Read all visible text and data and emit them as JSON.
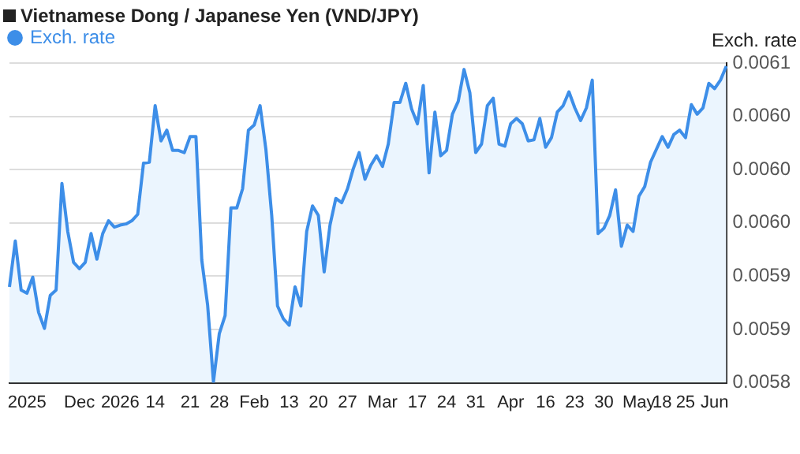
{
  "chart_data": {
    "type": "area",
    "title": "Vietnamese Dong / Japanese Yen (VND/JPY)",
    "ylabel": "Exch. rate",
    "categories": [
      null,
      null,
      null,
      "2025",
      null,
      null,
      null,
      null,
      null,
      null,
      null,
      null,
      "Dec",
      null,
      null,
      null,
      null,
      null,
      null,
      "2026",
      null,
      null,
      null,
      null,
      null,
      "14",
      null,
      null,
      null,
      null,
      null,
      "21",
      null,
      null,
      null,
      null,
      "28",
      null,
      null,
      null,
      null,
      null,
      "Feb",
      null,
      null,
      null,
      null,
      null,
      "13",
      null,
      null,
      null,
      null,
      "20",
      null,
      null,
      null,
      null,
      "27",
      null,
      null,
      null,
      null,
      null,
      "Mar",
      null,
      null,
      null,
      null,
      null,
      "17",
      null,
      null,
      null,
      null,
      "24",
      null,
      null,
      null,
      null,
      "31",
      null,
      null,
      null,
      null,
      null,
      "Apr",
      null,
      null,
      null,
      null,
      null,
      "16",
      null,
      null,
      null,
      null,
      "23",
      null,
      null,
      null,
      null,
      "30",
      null,
      null,
      null,
      null,
      null,
      "May",
      null,
      null,
      null,
      "18",
      null,
      null,
      null,
      "25",
      null,
      null,
      null,
      null,
      "Jun",
      null,
      null
    ],
    "series": [
      {
        "name": "Exch. rate",
        "color": "#3d8ee8",
        "values": [
          0.00589,
          0.005933,
          0.005887,
          0.005884,
          0.005899,
          0.005866,
          0.005851,
          0.005882,
          0.005887,
          0.005987,
          0.005942,
          0.005913,
          0.005907,
          0.005913,
          0.00594,
          0.005916,
          0.00594,
          0.005952,
          0.005946,
          0.005948,
          0.005949,
          0.005952,
          0.005958,
          0.006006,
          0.006007,
          0.00606,
          0.006027,
          0.006037,
          0.006018,
          0.006018,
          0.006016,
          0.006031,
          0.006031,
          0.005915,
          0.005873,
          0.005801,
          0.005846,
          0.005863,
          0.005964,
          0.005964,
          0.005982,
          0.006037,
          0.006042,
          0.00606,
          0.006019,
          0.005957,
          0.005872,
          0.00586,
          0.005854,
          0.00589,
          0.005872,
          0.005942,
          0.005966,
          0.005957,
          0.005904,
          0.005948,
          0.005973,
          0.005969,
          0.005982,
          0.006001,
          0.006016,
          0.005991,
          0.006004,
          0.006013,
          0.006003,
          0.006024,
          0.006063,
          0.006063,
          0.006081,
          0.006057,
          0.006043,
          0.006079,
          0.005997,
          0.006054,
          0.006013,
          0.006018,
          0.006052,
          0.006064,
          0.006094,
          0.006072,
          0.006016,
          0.006024,
          0.00606,
          0.006067,
          0.006024,
          0.006022,
          0.006043,
          0.006048,
          0.006043,
          0.006027,
          0.006028,
          0.006048,
          0.006021,
          0.00603,
          0.006054,
          0.00606,
          0.006073,
          0.006058,
          0.006046,
          0.006058,
          0.006084,
          0.00594,
          0.005945,
          0.005957,
          0.005981,
          0.005928,
          0.005948,
          0.005942,
          0.005975,
          0.005984,
          0.006007,
          0.006019,
          0.006031,
          0.006021,
          0.006033,
          0.006037,
          0.00603,
          0.006061,
          0.006052,
          0.006058,
          0.006081,
          0.006076,
          0.006084,
          0.006097
        ]
      }
    ],
    "ylim": [
      0.0058,
      0.0061
    ],
    "yticks": [
      {
        "value": 0.0058,
        "label": "0.0058"
      },
      {
        "value": 0.00585,
        "label": "0.0059"
      },
      {
        "value": 0.0059,
        "label": "0.0059"
      },
      {
        "value": 0.00595,
        "label": "0.0060"
      },
      {
        "value": 0.006,
        "label": "0.0060"
      },
      {
        "value": 0.00605,
        "label": "0.0060"
      },
      {
        "value": 0.0061,
        "label": "0.0061"
      }
    ],
    "grid": "y",
    "legend": "top left"
  }
}
